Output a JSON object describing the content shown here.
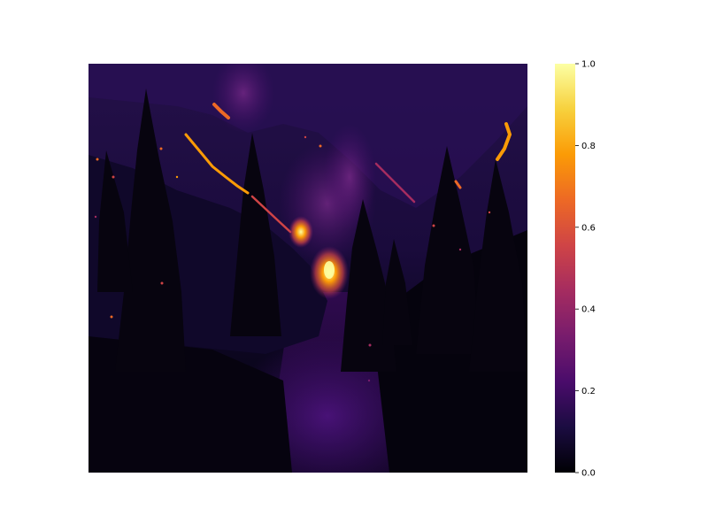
{
  "chart_data": {
    "type": "heatmap",
    "title": "",
    "xlabel": "",
    "ylabel": "",
    "axes_visible": false,
    "grid": false,
    "colormap": "inferno",
    "colormap_stops": [
      "#000004",
      "#1b0c41",
      "#4a0c6b",
      "#781c6d",
      "#a52c60",
      "#cf4446",
      "#ed6925",
      "#fb9b06",
      "#f7d13d",
      "#fcffa4"
    ],
    "colorbar": {
      "location": "right",
      "range": [
        0.0,
        1.0
      ],
      "ticks": [
        0.0,
        0.2,
        0.4,
        0.6,
        0.8,
        1.0
      ],
      "tick_labels": [
        "0.0",
        "0.2",
        "0.4",
        "0.6",
        "0.8",
        "1.0"
      ]
    },
    "image_content": "nighttime forest fire on a hillside: dark conifer silhouettes, glowing flame lines along the slopes, bright hotspot in the central valley"
  }
}
